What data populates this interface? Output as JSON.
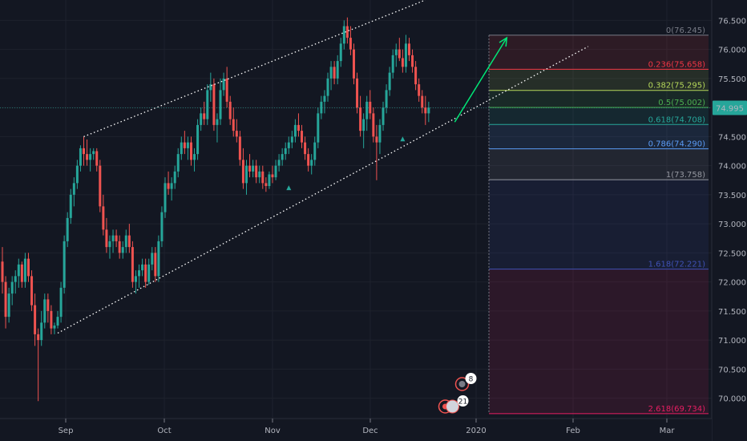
{
  "chart_data": {
    "type": "candlestick",
    "title": "",
    "xlabel": "",
    "ylabel": "",
    "ylim": [
      69.65,
      76.85
    ],
    "x_ticks": [
      "Sep",
      "Oct",
      "Nov",
      "Dec",
      "2020",
      "Feb",
      "Mar"
    ],
    "y_ticks": [
      "70.000",
      "70.500",
      "71.000",
      "71.500",
      "72.000",
      "72.500",
      "73.000",
      "73.500",
      "74.000",
      "74.500",
      "75.000",
      "75.500",
      "76.000",
      "76.500"
    ],
    "current_price": {
      "value": 74.995,
      "label": "74.995"
    },
    "grid": true,
    "fibonacci": [
      {
        "ratio": 0,
        "price": 76.245,
        "label": "0(76.245)",
        "color": "#787b86"
      },
      {
        "ratio": 0.236,
        "price": 75.658,
        "label": "0.236(75.658)",
        "color": "#f23645"
      },
      {
        "ratio": 0.382,
        "price": 75.295,
        "label": "0.382(75.295)",
        "color": "#b5d85a"
      },
      {
        "ratio": 0.5,
        "price": 75.002,
        "label": "0.5(75.002)",
        "color": "#4caf50"
      },
      {
        "ratio": 0.618,
        "price": 74.708,
        "label": "0.618(74.708)",
        "color": "#26a69a"
      },
      {
        "ratio": 0.786,
        "price": 74.29,
        "label": "0.786(74.290)",
        "color": "#5b9cf6"
      },
      {
        "ratio": 1,
        "price": 73.758,
        "label": "1(73.758)",
        "color": "#9598a1"
      },
      {
        "ratio": 1.618,
        "price": 72.221,
        "label": "1.618(72.221)",
        "color": "#3f51b5"
      },
      {
        "ratio": 2.618,
        "price": 69.734,
        "label": "2.618(69.734)",
        "color": "#e91e63"
      }
    ],
    "channel_lines": [
      {
        "from": {
          "index": 25,
          "price": 74.5
        },
        "to": {
          "index": 130,
          "price": 76.85
        }
      },
      {
        "from": {
          "index": 17,
          "price": 71.12
        },
        "to": {
          "index": 180,
          "price": 76.05
        }
      }
    ],
    "projection_arrow": {
      "from": {
        "index": 139,
        "price": 74.75
      },
      "to": {
        "index": 155,
        "price": 76.2
      }
    },
    "markers": [
      {
        "index": 88,
        "price": 73.62,
        "shape": "triangle-up",
        "color": "#26a69a"
      },
      {
        "index": 123,
        "price": 74.46,
        "shape": "triangle-up",
        "color": "#26a69a"
      }
    ],
    "event_badges": [
      {
        "index": 142,
        "label": "8"
      },
      {
        "index": 142,
        "label": "21"
      }
    ],
    "up_color": "#26a69a",
    "down_color": "#ef5350",
    "candles": [
      [
        72.35,
        72.6,
        71.8,
        72.0
      ],
      [
        72.0,
        72.1,
        71.2,
        71.4
      ],
      [
        71.4,
        71.9,
        71.3,
        71.8
      ],
      [
        71.8,
        72.1,
        71.6,
        72.0
      ],
      [
        72.0,
        72.2,
        71.8,
        72.1
      ],
      [
        72.1,
        72.4,
        71.9,
        72.3
      ],
      [
        72.3,
        72.35,
        71.9,
        72.0
      ],
      [
        72.0,
        72.5,
        71.9,
        72.4
      ],
      [
        72.4,
        72.5,
        72.0,
        72.1
      ],
      [
        72.1,
        72.2,
        71.5,
        71.6
      ],
      [
        71.6,
        71.8,
        70.9,
        71.1
      ],
      [
        71.1,
        71.2,
        69.95,
        71.0
      ],
      [
        71.0,
        71.5,
        70.9,
        71.3
      ],
      [
        71.3,
        71.8,
        71.2,
        71.7
      ],
      [
        71.7,
        71.8,
        71.3,
        71.5
      ],
      [
        71.5,
        71.6,
        71.1,
        71.2
      ],
      [
        71.2,
        71.3,
        71.1,
        71.25
      ],
      [
        71.25,
        71.5,
        71.2,
        71.4
      ],
      [
        71.4,
        72.0,
        71.3,
        71.9
      ],
      [
        71.9,
        72.8,
        71.8,
        72.7
      ],
      [
        72.7,
        73.2,
        72.6,
        73.1
      ],
      [
        73.1,
        73.6,
        73.0,
        73.5
      ],
      [
        73.5,
        73.8,
        73.3,
        73.7
      ],
      [
        73.7,
        74.1,
        73.6,
        74.0
      ],
      [
        74.0,
        74.35,
        73.9,
        74.3
      ],
      [
        74.3,
        74.5,
        74.0,
        74.2
      ],
      [
        74.2,
        74.45,
        74.0,
        74.1
      ],
      [
        74.1,
        74.3,
        73.9,
        74.2
      ],
      [
        74.2,
        74.3,
        74.1,
        74.25
      ],
      [
        74.25,
        74.3,
        73.9,
        74.0
      ],
      [
        74.0,
        74.1,
        73.2,
        73.3
      ],
      [
        73.3,
        73.5,
        72.8,
        72.9
      ],
      [
        72.9,
        73.1,
        72.5,
        72.6
      ],
      [
        72.6,
        72.8,
        72.4,
        72.7
      ],
      [
        72.7,
        72.9,
        72.5,
        72.8
      ],
      [
        72.8,
        72.9,
        72.6,
        72.7
      ],
      [
        72.7,
        72.8,
        72.4,
        72.5
      ],
      [
        72.5,
        72.7,
        72.4,
        72.6
      ],
      [
        72.6,
        72.9,
        72.5,
        72.8
      ],
      [
        72.8,
        73.0,
        72.5,
        72.6
      ],
      [
        72.6,
        72.7,
        71.9,
        72.0
      ],
      [
        72.0,
        72.2,
        71.8,
        72.1
      ],
      [
        72.1,
        72.3,
        71.9,
        72.2
      ],
      [
        72.2,
        72.4,
        72.1,
        72.3
      ],
      [
        72.3,
        72.4,
        71.9,
        72.0
      ],
      [
        72.0,
        72.4,
        71.95,
        72.3
      ],
      [
        72.3,
        72.6,
        72.2,
        72.5
      ],
      [
        72.5,
        72.6,
        72.0,
        72.1
      ],
      [
        72.1,
        72.8,
        72.0,
        72.7
      ],
      [
        72.7,
        73.3,
        72.6,
        73.2
      ],
      [
        73.2,
        73.8,
        73.1,
        73.7
      ],
      [
        73.7,
        73.9,
        73.5,
        73.6
      ],
      [
        73.6,
        73.8,
        73.4,
        73.7
      ],
      [
        73.7,
        74.0,
        73.6,
        73.9
      ],
      [
        73.9,
        74.3,
        73.8,
        74.2
      ],
      [
        74.2,
        74.5,
        74.1,
        74.4
      ],
      [
        74.4,
        74.6,
        74.2,
        74.3
      ],
      [
        74.3,
        74.5,
        74.1,
        74.4
      ],
      [
        74.4,
        74.5,
        74.0,
        74.1
      ],
      [
        74.1,
        74.3,
        73.9,
        74.2
      ],
      [
        74.2,
        74.8,
        74.1,
        74.7
      ],
      [
        74.7,
        75.0,
        74.6,
        74.9
      ],
      [
        74.9,
        75.1,
        74.7,
        74.8
      ],
      [
        74.8,
        75.4,
        74.7,
        75.3
      ],
      [
        75.3,
        75.6,
        75.1,
        75.4
      ],
      [
        75.4,
        75.5,
        74.6,
        74.7
      ],
      [
        74.7,
        74.9,
        74.4,
        74.8
      ],
      [
        74.8,
        75.5,
        74.7,
        75.3
      ],
      [
        75.3,
        75.6,
        75.2,
        75.5
      ],
      [
        75.5,
        75.7,
        75.0,
        75.1
      ],
      [
        75.1,
        75.2,
        74.7,
        74.8
      ],
      [
        74.8,
        75.0,
        74.5,
        74.6
      ],
      [
        74.6,
        74.8,
        74.4,
        74.5
      ],
      [
        74.5,
        74.6,
        74.0,
        74.1
      ],
      [
        74.1,
        74.3,
        73.6,
        73.7
      ],
      [
        73.7,
        74.1,
        73.5,
        74.0
      ],
      [
        74.0,
        74.2,
        73.8,
        73.9
      ],
      [
        73.9,
        74.1,
        73.8,
        74.0
      ],
      [
        74.0,
        74.1,
        73.7,
        73.8
      ],
      [
        73.8,
        74.0,
        73.7,
        73.9
      ],
      [
        73.9,
        74.0,
        73.6,
        73.7
      ],
      [
        73.7,
        73.8,
        73.55,
        73.65
      ],
      [
        73.65,
        73.9,
        73.6,
        73.85
      ],
      [
        73.85,
        74.0,
        73.7,
        73.8
      ],
      [
        73.8,
        74.1,
        73.75,
        74.0
      ],
      [
        74.0,
        74.2,
        73.9,
        74.1
      ],
      [
        74.1,
        74.3,
        74.0,
        74.2
      ],
      [
        74.2,
        74.4,
        74.1,
        74.3
      ],
      [
        74.3,
        74.5,
        74.2,
        74.4
      ],
      [
        74.4,
        74.6,
        74.3,
        74.5
      ],
      [
        74.5,
        74.8,
        74.4,
        74.7
      ],
      [
        74.7,
        74.9,
        74.5,
        74.6
      ],
      [
        74.6,
        74.7,
        74.3,
        74.4
      ],
      [
        74.4,
        74.5,
        74.1,
        74.2
      ],
      [
        74.2,
        74.3,
        73.9,
        74.0
      ],
      [
        74.0,
        74.2,
        73.85,
        74.1
      ],
      [
        74.1,
        74.5,
        74.0,
        74.4
      ],
      [
        74.4,
        75.0,
        74.3,
        74.9
      ],
      [
        74.9,
        75.2,
        74.8,
        75.1
      ],
      [
        75.1,
        75.3,
        74.9,
        75.2
      ],
      [
        75.2,
        75.6,
        75.1,
        75.5
      ],
      [
        75.5,
        75.8,
        75.3,
        75.7
      ],
      [
        75.7,
        75.8,
        75.4,
        75.5
      ],
      [
        75.5,
        75.9,
        75.4,
        75.8
      ],
      [
        75.8,
        76.2,
        75.7,
        76.1
      ],
      [
        76.1,
        76.5,
        76.0,
        76.4
      ],
      [
        76.4,
        76.55,
        76.1,
        76.2
      ],
      [
        76.2,
        76.4,
        75.9,
        76.0
      ],
      [
        76.0,
        76.1,
        75.4,
        75.5
      ],
      [
        75.5,
        75.6,
        74.9,
        75.0
      ],
      [
        75.0,
        75.2,
        74.5,
        74.6
      ],
      [
        74.6,
        74.9,
        74.3,
        74.8
      ],
      [
        74.8,
        75.2,
        74.6,
        75.1
      ],
      [
        75.1,
        75.3,
        74.8,
        74.9
      ],
      [
        74.9,
        75.0,
        74.4,
        74.5
      ],
      [
        74.5,
        74.7,
        73.75,
        74.4
      ],
      [
        74.4,
        74.8,
        74.2,
        74.7
      ],
      [
        74.7,
        75.1,
        74.6,
        75.0
      ],
      [
        75.0,
        75.4,
        74.9,
        75.3
      ],
      [
        75.3,
        75.7,
        75.2,
        75.6
      ],
      [
        75.6,
        76.0,
        75.5,
        75.9
      ],
      [
        75.9,
        76.1,
        75.7,
        76.0
      ],
      [
        76.0,
        76.2,
        75.8,
        75.85
      ],
      [
        75.85,
        76.0,
        75.6,
        75.7
      ],
      [
        75.7,
        76.25,
        75.6,
        76.1
      ],
      [
        76.1,
        76.2,
        75.8,
        75.9
      ],
      [
        75.9,
        76.0,
        75.6,
        75.7
      ],
      [
        75.7,
        75.8,
        75.3,
        75.4
      ],
      [
        75.4,
        75.5,
        75.1,
        75.2
      ],
      [
        75.2,
        75.3,
        74.9,
        75.0
      ],
      [
        75.0,
        75.2,
        74.7,
        74.9
      ],
      [
        74.9,
        75.1,
        74.75,
        75.0
      ]
    ]
  }
}
